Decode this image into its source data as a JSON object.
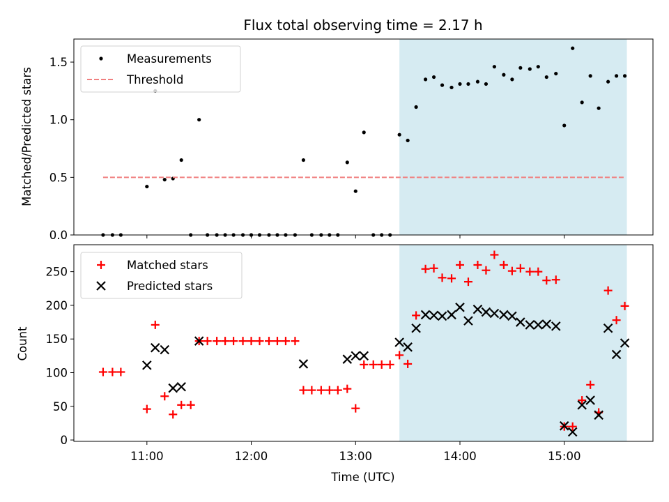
{
  "chart_data": [
    {
      "type": "scatter",
      "title": "Flux total observing time = 2.17 h",
      "xlabel": "",
      "ylabel": "Matched/Predicted stars",
      "x_unit": "hours UTC",
      "xlim": [
        10.3,
        15.85
      ],
      "ylim": [
        0,
        1.7
      ],
      "yticks": [
        0.0,
        0.5,
        1.0,
        1.5
      ],
      "ytick_labels": [
        "0.0",
        "0.5",
        "1.0",
        "1.5"
      ],
      "shaded_region": {
        "x_start": 13.42,
        "x_end": 15.6,
        "color": "#add8e6"
      },
      "legend_position": "upper-left",
      "series": [
        {
          "name": "Measurements",
          "marker": "dot",
          "color": "#000000",
          "x": [
            10.58,
            10.67,
            10.75,
            11.0,
            11.08,
            11.17,
            11.25,
            11.33,
            11.42,
            11.5,
            11.58,
            11.67,
            11.75,
            11.83,
            11.92,
            12.0,
            12.08,
            12.17,
            12.25,
            12.33,
            12.42,
            12.5,
            12.58,
            12.67,
            12.75,
            12.83,
            12.92,
            13.0,
            13.08,
            13.17,
            13.25,
            13.33,
            13.42,
            13.5,
            13.58,
            13.67,
            13.75,
            13.83,
            13.92,
            14.0,
            14.08,
            14.17,
            14.25,
            14.33,
            14.42,
            14.5,
            14.58,
            14.67,
            14.75,
            14.83,
            14.92,
            15.0,
            15.08,
            15.17,
            15.25,
            15.33,
            15.42,
            15.5,
            15.58
          ],
          "y": [
            0,
            0,
            0,
            0.42,
            1.25,
            0.48,
            0.49,
            0.65,
            0,
            1.0,
            0,
            0,
            0,
            0,
            0,
            0,
            0,
            0,
            0,
            0,
            0,
            0.65,
            0,
            0,
            0,
            0,
            0.63,
            0.38,
            0.89,
            0,
            0,
            0,
            0.87,
            0.82,
            1.11,
            1.35,
            1.37,
            1.3,
            1.28,
            1.31,
            1.31,
            1.33,
            1.31,
            1.46,
            1.39,
            1.35,
            1.45,
            1.44,
            1.46,
            1.37,
            1.4,
            0.95,
            1.62,
            1.15,
            1.38,
            1.1,
            1.33,
            1.38,
            1.38
          ]
        },
        {
          "name": "Threshold",
          "marker": "dashed-line",
          "color": "#f08080",
          "x": [
            10.58,
            15.58
          ],
          "y": [
            0.5,
            0.5
          ]
        }
      ]
    },
    {
      "type": "scatter",
      "title": "",
      "xlabel": "Time (UTC)",
      "ylabel": "Count",
      "x_unit": "hours UTC",
      "xlim": [
        10.3,
        15.85
      ],
      "ylim": [
        -2,
        290
      ],
      "yticks": [
        0,
        50,
        100,
        150,
        200,
        250
      ],
      "ytick_labels": [
        "0",
        "50",
        "100",
        "150",
        "200",
        "250"
      ],
      "xticks": [
        11,
        12,
        13,
        14,
        15
      ],
      "xtick_labels": [
        "11:00",
        "12:00",
        "13:00",
        "14:00",
        "15:00"
      ],
      "shaded_region": {
        "x_start": 13.42,
        "x_end": 15.6,
        "color": "#add8e6"
      },
      "legend_position": "upper-left",
      "series": [
        {
          "name": "Matched stars",
          "marker": "plus",
          "color": "#ff0000",
          "x": [
            10.58,
            10.67,
            10.75,
            11.0,
            11.08,
            11.17,
            11.25,
            11.33,
            11.42,
            11.5,
            11.58,
            11.67,
            11.75,
            11.83,
            11.92,
            12.0,
            12.08,
            12.17,
            12.25,
            12.33,
            12.42,
            12.5,
            12.58,
            12.67,
            12.75,
            12.83,
            12.92,
            13.0,
            13.08,
            13.17,
            13.25,
            13.33,
            13.42,
            13.5,
            13.58,
            13.67,
            13.75,
            13.83,
            13.92,
            14.0,
            14.08,
            14.17,
            14.25,
            14.33,
            14.42,
            14.5,
            14.58,
            14.67,
            14.75,
            14.83,
            14.92,
            15.0,
            15.08,
            15.17,
            15.25,
            15.33,
            15.42,
            15.5,
            15.58
          ],
          "y": [
            101,
            101,
            101,
            46,
            171,
            65,
            38,
            52,
            52,
            147,
            147,
            147,
            147,
            147,
            147,
            147,
            147,
            147,
            147,
            147,
            147,
            74,
            74,
            74,
            74,
            74,
            76,
            47,
            112,
            112,
            112,
            112,
            126,
            113,
            185,
            254,
            255,
            241,
            240,
            260,
            235,
            260,
            252,
            275,
            260,
            251,
            255,
            250,
            250,
            237,
            238,
            20,
            20,
            59,
            82,
            41,
            222,
            178,
            199
          ]
        },
        {
          "name": "Predicted stars",
          "marker": "x",
          "color": "#000000",
          "x": [
            11.0,
            11.08,
            11.17,
            11.25,
            11.33,
            11.5,
            12.5,
            12.92,
            13.0,
            13.08,
            13.42,
            13.5,
            13.58,
            13.67,
            13.75,
            13.83,
            13.92,
            14.0,
            14.08,
            14.17,
            14.25,
            14.33,
            14.42,
            14.5,
            14.58,
            14.67,
            14.75,
            14.83,
            14.92,
            15.0,
            15.08,
            15.17,
            15.25,
            15.33,
            15.42,
            15.5,
            15.58
          ],
          "y": [
            111,
            137,
            134,
            77,
            79,
            147,
            113,
            120,
            125,
            125,
            145,
            138,
            166,
            186,
            185,
            184,
            186,
            197,
            177,
            194,
            190,
            188,
            186,
            184,
            175,
            171,
            171,
            172,
            169,
            21,
            12,
            52,
            59,
            37,
            166,
            127,
            144
          ]
        }
      ]
    }
  ]
}
